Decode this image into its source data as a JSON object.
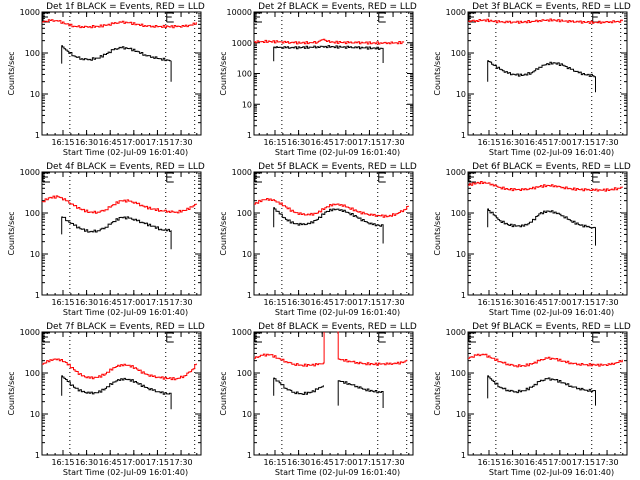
{
  "chart_data": {
    "type": "line",
    "layout": "3x3 grid",
    "shared": {
      "xlabel": "Start Time (02-Jul-09 16:01:40)",
      "ylabel": "Counts/sec",
      "x_unit": "minutes after 16:01:40",
      "x_range": [
        0,
        101
      ],
      "x_ticks": [
        {
          "label": "16:15",
          "value": 13.33
        },
        {
          "label": "16:30",
          "value": 28.33
        },
        {
          "label": "16:45",
          "value": 43.33
        },
        {
          "label": "17:00",
          "value": 58.33
        },
        {
          "label": "17:15",
          "value": 73.33
        },
        {
          "label": "17:30",
          "value": 88.33
        }
      ],
      "y_scale": "log",
      "dotted_lines_x": [
        17.7,
        78.6,
        97.0
      ],
      "e_markers_x": [
        0,
        78.6
      ],
      "legend": "BLACK = Events, RED = LLD",
      "series_colors": {
        "events": "#000000",
        "lld": "#ff0000"
      }
    },
    "panels": [
      {
        "title": "Det 1f BLACK = Events, RED = LLD",
        "ylim": [
          1,
          1000
        ],
        "y_ticks": [
          "1",
          "10",
          "100",
          "1000"
        ],
        "series": [
          {
            "name": "Events",
            "color": "#000000",
            "x": [
              12.5,
              12.5,
              13,
              16,
              20,
              25,
              30,
              35,
              40,
              45,
              50,
              55,
              60,
              65,
              70,
              75,
              79,
              82,
              82
            ],
            "y": [
              55,
              150,
              140,
              110,
              85,
              72,
              70,
              75,
              92,
              120,
              135,
              128,
              110,
              90,
              80,
              72,
              68,
              65,
              20
            ]
          },
          {
            "name": "LLD",
            "color": "#ff0000",
            "x": [
              0,
              5,
              10,
              15,
              20,
              25,
              30,
              35,
              40,
              45,
              50,
              55,
              60,
              65,
              70,
              75,
              80,
              85,
              90,
              95,
              98
            ],
            "y": [
              570,
              620,
              600,
              510,
              450,
              440,
              440,
              445,
              470,
              520,
              560,
              545,
              500,
              465,
              450,
              445,
              440,
              440,
              445,
              480,
              560
            ]
          }
        ]
      },
      {
        "title": "Det 2f BLACK = Events, RED = LLD",
        "ylim": [
          1,
          10000
        ],
        "y_ticks": [
          "1",
          "10",
          "100",
          "1000",
          "10000"
        ],
        "series": [
          {
            "name": "Events",
            "color": "#000000",
            "x": [
              12.5,
              12.5,
              15,
              20,
              25,
              30,
              35,
              40,
              45,
              50,
              55,
              60,
              65,
              70,
              75,
              80,
              82,
              82
            ],
            "y": [
              250,
              720,
              700,
              690,
              680,
              700,
              720,
              740,
              760,
              740,
              720,
              700,
              690,
              680,
              670,
              660,
              650,
              220
            ]
          },
          {
            "name": "LLD",
            "color": "#ff0000",
            "x": [
              0,
              5,
              10,
              15,
              20,
              25,
              30,
              35,
              40,
              42,
              44,
              46,
              50,
              55,
              60,
              65,
              70,
              75,
              80,
              85,
              90,
              95
            ],
            "y": [
              1080,
              1100,
              1100,
              1060,
              1020,
              1000,
              990,
              1010,
              1050,
              1200,
              1300,
              1100,
              1050,
              1020,
              1000,
              1000,
              990,
              980,
              990,
              1000,
              1000,
              1020
            ]
          }
        ]
      },
      {
        "title": "Det 3f BLACK = Events, RED = LLD",
        "ylim": [
          1,
          1000
        ],
        "y_ticks": [
          "1",
          "10",
          "100",
          "1000"
        ],
        "series": [
          {
            "name": "Events",
            "color": "#000000",
            "x": [
              12.5,
              12.5,
              13,
              16,
              20,
              25,
              30,
              35,
              40,
              45,
              50,
              55,
              60,
              65,
              70,
              75,
              79,
              81,
              81
            ],
            "y": [
              20,
              65,
              62,
              50,
              40,
              32,
              29,
              29,
              33,
              45,
              55,
              57,
              50,
              40,
              33,
              29,
              28,
              25,
              11
            ]
          },
          {
            "name": "LLD",
            "color": "#ff0000",
            "x": [
              0,
              5,
              10,
              15,
              20,
              25,
              30,
              35,
              40,
              45,
              50,
              55,
              60,
              65,
              70,
              75,
              80,
              85,
              90,
              95,
              98
            ],
            "y": [
              600,
              620,
              640,
              600,
              570,
              560,
              560,
              570,
              590,
              620,
              640,
              630,
              600,
              580,
              570,
              560,
              560,
              570,
              580,
              590,
              600
            ]
          }
        ]
      },
      {
        "title": "Det 4f BLACK = Events, RED = LLD",
        "ylim": [
          1,
          1000
        ],
        "y_ticks": [
          "1",
          "10",
          "100",
          "1000"
        ],
        "series": [
          {
            "name": "Events",
            "color": "#000000",
            "x": [
              12.5,
              12.5,
              13,
              16,
              20,
              25,
              30,
              35,
              40,
              45,
              50,
              55,
              60,
              65,
              70,
              75,
              79,
              82,
              82
            ],
            "y": [
              30,
              80,
              78,
              65,
              50,
              40,
              35,
              37,
              45,
              62,
              78,
              75,
              65,
              55,
              48,
              40,
              37,
              38,
              13
            ]
          },
          {
            "name": "LLD",
            "color": "#ff0000",
            "x": [
              0,
              5,
              10,
              15,
              20,
              25,
              30,
              35,
              40,
              45,
              50,
              55,
              60,
              65,
              70,
              75,
              80,
              85,
              90,
              95,
              98
            ],
            "y": [
              190,
              240,
              250,
              200,
              150,
              120,
              105,
              105,
              120,
              160,
              200,
              195,
              170,
              140,
              125,
              115,
              110,
              105,
              115,
              140,
              170
            ]
          }
        ]
      },
      {
        "title": "Det 5f BLACK = Events, RED = LLD",
        "ylim": [
          1,
          1000
        ],
        "y_ticks": [
          "1",
          "10",
          "100",
          "1000"
        ],
        "series": [
          {
            "name": "Events",
            "color": "#000000",
            "x": [
              12.5,
              12.5,
              13,
              16,
              20,
              25,
              30,
              35,
              40,
              45,
              50,
              55,
              60,
              65,
              70,
              75,
              79,
              82,
              82
            ],
            "y": [
              45,
              135,
              125,
              95,
              70,
              55,
              52,
              55,
              70,
              105,
              125,
              120,
              100,
              80,
              62,
              52,
              50,
              48,
              18
            ]
          },
          {
            "name": "LLD",
            "color": "#ff0000",
            "x": [
              0,
              5,
              10,
              15,
              20,
              25,
              30,
              35,
              40,
              45,
              50,
              55,
              60,
              65,
              70,
              75,
              80,
              85,
              90,
              95,
              98
            ],
            "y": [
              165,
              210,
              220,
              185,
              140,
              105,
              92,
              90,
              100,
              135,
              165,
              160,
              135,
              110,
              95,
              88,
              85,
              83,
              95,
              120,
              150
            ]
          }
        ]
      },
      {
        "title": "Det 6f BLACK = Events, RED = LLD",
        "ylim": [
          1,
          1000
        ],
        "y_ticks": [
          "1",
          "10",
          "100",
          "1000"
        ],
        "series": [
          {
            "name": "Events",
            "color": "#000000",
            "x": [
              12.5,
              12.5,
              13,
              16,
              20,
              25,
              30,
              35,
              40,
              45,
              50,
              55,
              60,
              65,
              70,
              75,
              79,
              81,
              81
            ],
            "y": [
              45,
              125,
              115,
              90,
              65,
              52,
              48,
              48,
              60,
              95,
              112,
              105,
              85,
              65,
              52,
              46,
              44,
              45,
              16
            ]
          },
          {
            "name": "LLD",
            "color": "#ff0000",
            "x": [
              0,
              5,
              10,
              15,
              20,
              25,
              30,
              35,
              40,
              45,
              50,
              55,
              60,
              65,
              70,
              75,
              80,
              85,
              90,
              95,
              98
            ],
            "y": [
              480,
              540,
              560,
              500,
              420,
              380,
              370,
              370,
              390,
              440,
              470,
              460,
              420,
              390,
              375,
              365,
              360,
              360,
              370,
              400,
              440
            ]
          }
        ]
      },
      {
        "title": "Det 7f BLACK = Events, RED = LLD",
        "ylim": [
          1,
          1000
        ],
        "y_ticks": [
          "1",
          "10",
          "100",
          "1000"
        ],
        "series": [
          {
            "name": "Events",
            "color": "#000000",
            "x": [
              12.5,
              12.5,
              13,
              16,
              20,
              25,
              30,
              35,
              40,
              45,
              50,
              55,
              60,
              65,
              70,
              75,
              79,
              82,
              82
            ],
            "y": [
              28,
              85,
              80,
              62,
              45,
              35,
              32,
              33,
              42,
              60,
              72,
              70,
              58,
              45,
              38,
              33,
              31,
              31,
              13
            ]
          },
          {
            "name": "LLD",
            "color": "#ff0000",
            "x": [
              0,
              5,
              10,
              15,
              20,
              25,
              30,
              35,
              40,
              45,
              50,
              55,
              60,
              65,
              70,
              75,
              80,
              85,
              90,
              95,
              98
            ],
            "y": [
              165,
              210,
              220,
              180,
              120,
              85,
              75,
              78,
              95,
              135,
              160,
              155,
              125,
              95,
              82,
              76,
              74,
              72,
              85,
              120,
              170
            ]
          }
        ]
      },
      {
        "title": "Det 8f BLACK = Events, RED = LLD",
        "ylim": [
          1,
          1000
        ],
        "y_ticks": [
          "1",
          "10",
          "100",
          "1000"
        ],
        "series": [
          {
            "name": "Events",
            "color": "#000000",
            "x": [
              12.5,
              12.5,
              13,
              16,
              20,
              25,
              30,
              35,
              40,
              44
            ],
            "y": [
              28,
              75,
              72,
              58,
              42,
              34,
              31,
              33,
              40,
              50
            ],
            "segment": 1
          },
          {
            "name": "Events",
            "color": "#000000",
            "x": [
              53.5,
              53.5,
              55,
              60,
              65,
              70,
              75,
              79,
              82,
              82
            ],
            "y": [
              16,
              65,
              62,
              55,
              47,
              40,
              36,
              35,
              35,
              14
            ],
            "segment": 2
          },
          {
            "name": "LLD",
            "color": "#ff0000",
            "x": [
              0,
              5,
              10,
              15,
              20,
              25,
              30,
              35,
              40,
              44,
              44.5
            ],
            "y": [
              230,
              270,
              280,
              230,
              190,
              165,
              155,
              155,
              160,
              175,
              1000
            ],
            "segment": 1
          },
          {
            "name": "LLD",
            "color": "#ff0000",
            "x": [
              53,
              53.5,
              55,
              60,
              65,
              70,
              75,
              80,
              85,
              90,
              95,
              97
            ],
            "y": [
              1000,
              220,
              210,
              195,
              180,
              170,
              165,
              165,
              165,
              170,
              185,
              210
            ],
            "segment": 2
          }
        ]
      },
      {
        "title": "Det 9f BLACK = Events, RED = LLD",
        "ylim": [
          1,
          1000
        ],
        "y_ticks": [
          "1",
          "10",
          "100",
          "1000"
        ],
        "series": [
          {
            "name": "Events",
            "color": "#000000",
            "x": [
              12.5,
              12.5,
              13,
              16,
              20,
              25,
              30,
              35,
              40,
              45,
              50,
              55,
              60,
              65,
              70,
              75,
              79,
              81,
              81
            ],
            "y": [
              24,
              85,
              80,
              62,
              45,
              38,
              35,
              37,
              45,
              62,
              72,
              68,
              58,
              48,
              42,
              38,
              37,
              38,
              16
            ]
          },
          {
            "name": "LLD",
            "color": "#ff0000",
            "x": [
              0,
              5,
              10,
              15,
              20,
              25,
              30,
              35,
              40,
              45,
              50,
              55,
              60,
              65,
              70,
              75,
              80,
              85,
              90,
              95,
              98
            ],
            "y": [
              230,
              270,
              280,
              230,
              190,
              165,
              150,
              150,
              165,
              200,
              230,
              220,
              195,
              175,
              165,
              160,
              158,
              155,
              160,
              180,
              210
            ]
          }
        ]
      }
    ]
  }
}
